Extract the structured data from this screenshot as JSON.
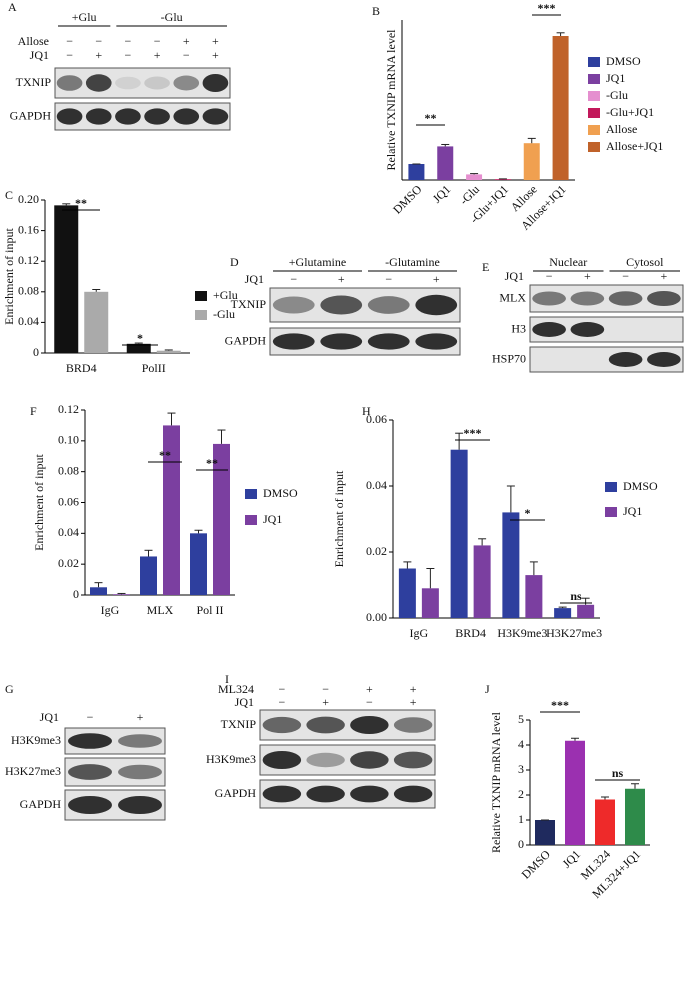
{
  "chart_data": [
    {
      "panel": "B",
      "type": "bar",
      "ylabel": "Relative TXNIP mRNA level",
      "categories": [
        "DMSO",
        "JQ1",
        "-Glu",
        "-Glu+JQ1",
        "Allose",
        "Allose+JQ1"
      ],
      "values": [
        1,
        2.1,
        0.35,
        0.05,
        2.3,
        9.0
      ],
      "errors": [
        0,
        0.12,
        0.05,
        0.02,
        0.3,
        0.2
      ],
      "colors": [
        "#2e3f9e",
        "#7b3fa0",
        "#e58fcf",
        "#c2185b",
        "#f0a050",
        "#c0622a"
      ],
      "ylim": [
        0,
        10
      ],
      "legend": "right",
      "annotations": [
        "**",
        "***"
      ]
    },
    {
      "panel": "C",
      "type": "bar",
      "ylabel": "Enrichment of input",
      "categories": [
        "BRD4",
        "PolII"
      ],
      "series": [
        {
          "name": "+Glu",
          "color": "#111111",
          "values": [
            0.193,
            0.012
          ],
          "errors": [
            0.002,
            0.001
          ]
        },
        {
          "name": "-Glu",
          "color": "#aaaaaa",
          "values": [
            0.08,
            0.003
          ],
          "errors": [
            0.003,
            0.001
          ]
        }
      ],
      "ylim": [
        0,
        0.2
      ],
      "yticks": [
        0,
        0.04,
        0.08,
        0.12,
        0.16,
        {
          "value": 0.2,
          "label": "0.20"
        }
      ],
      "legend": "right",
      "annotations": [
        "**",
        "*"
      ]
    },
    {
      "panel": "F",
      "type": "bar",
      "ylabel": "Enrichment of input",
      "categories": [
        "IgG",
        "MLX",
        "Pol II"
      ],
      "series": [
        {
          "name": "DMSO",
          "color": "#2e3f9e",
          "values": [
            0.005,
            0.025,
            0.04
          ],
          "errors": [
            0.003,
            0.004,
            0.002
          ]
        },
        {
          "name": "JQ1",
          "color": "#7b3fa0",
          "values": [
            0.0005,
            0.11,
            0.098
          ],
          "errors": [
            0.0005,
            0.008,
            0.009
          ]
        }
      ],
      "ylim": [
        0,
        0.12
      ],
      "yticks": [
        0,
        0.02,
        0.04,
        0.06,
        0.08,
        {
          "value": 0.1,
          "label": "0.10"
        },
        0.12
      ],
      "legend": "right",
      "annotations": [
        "**",
        "**"
      ]
    },
    {
      "panel": "H",
      "type": "bar",
      "ylabel": "Enrichment of input",
      "categories": [
        "IgG",
        "BRD4",
        "H3K9me3",
        "H3K27me3"
      ],
      "series": [
        {
          "name": "DMSO",
          "color": "#2e3f9e",
          "values": [
            0.015,
            0.051,
            0.032,
            0.003
          ],
          "errors": [
            0.002,
            0.005,
            0.008,
            0.0003
          ]
        },
        {
          "name": "JQ1",
          "color": "#7b3fa0",
          "values": [
            0.009,
            0.022,
            0.013,
            0.004
          ],
          "errors": [
            0.006,
            0.002,
            0.004,
            0.002
          ]
        }
      ],
      "ylim": [
        0,
        0.06
      ],
      "yticks": [
        {
          "value": 0,
          "label": "0.00"
        },
        0.02,
        0.04,
        0.06
      ],
      "legend": "right",
      "annotations": [
        "***",
        "*",
        "ns"
      ]
    },
    {
      "panel": "J",
      "type": "bar",
      "ylabel": "Relative TXNIP mRNA level",
      "categories": [
        "DMSO",
        "JQ1",
        "ML324",
        "ML324+JQ1"
      ],
      "values": [
        1,
        4.17,
        1.82,
        2.25
      ],
      "errors": [
        0,
        0.1,
        0.1,
        0.2
      ],
      "colors": [
        "#1f2a5e",
        "#9b30b0",
        "#ee2a2a",
        "#2e8b4a"
      ],
      "ylim": [
        0,
        5
      ],
      "yticks": [
        0,
        1,
        2,
        3,
        4,
        5
      ],
      "annotations": [
        "***",
        "ns"
      ]
    }
  ],
  "blots": [
    {
      "label": "A",
      "groups": [
        "+Glu",
        "-Glu"
      ],
      "conditions": [
        {
          "name": "Allose",
          "signs": [
            "−",
            "−",
            "−",
            "−",
            "+",
            "+"
          ]
        },
        {
          "name": "JQ1",
          "signs": [
            "−",
            "+",
            "−",
            "+",
            "−",
            "+"
          ]
        }
      ],
      "rows": [
        "TXNIP",
        "GAPDH"
      ]
    },
    {
      "label": "D",
      "groups": [
        "+Glutamine",
        "-Glutamine"
      ],
      "conditions": [
        {
          "name": "JQ1",
          "signs": [
            "−",
            "+",
            "−",
            "+"
          ]
        }
      ],
      "rows": [
        "TXNIP",
        "GAPDH"
      ]
    },
    {
      "label": "E",
      "groups": [
        "Nuclear",
        "Cytosol"
      ],
      "conditions": [
        {
          "name": "JQ1",
          "signs": [
            "−",
            "+",
            "−",
            "+"
          ]
        }
      ],
      "rows": [
        "MLX",
        "H3",
        "HSP70"
      ]
    },
    {
      "label": "G",
      "conditions": [
        {
          "name": "JQ1",
          "signs": [
            "−",
            "+"
          ]
        }
      ],
      "rows": [
        "H3K9me3",
        "H3K27me3",
        "GAPDH"
      ]
    },
    {
      "label": "I",
      "conditions": [
        {
          "name": "ML324",
          "signs": [
            "−",
            "−",
            "+",
            "+"
          ]
        },
        {
          "name": "JQ1",
          "signs": [
            "−",
            "+",
            "−",
            "+"
          ]
        }
      ],
      "rows": [
        "TXNIP",
        "H3K9me3",
        "GAPDH"
      ]
    }
  ]
}
